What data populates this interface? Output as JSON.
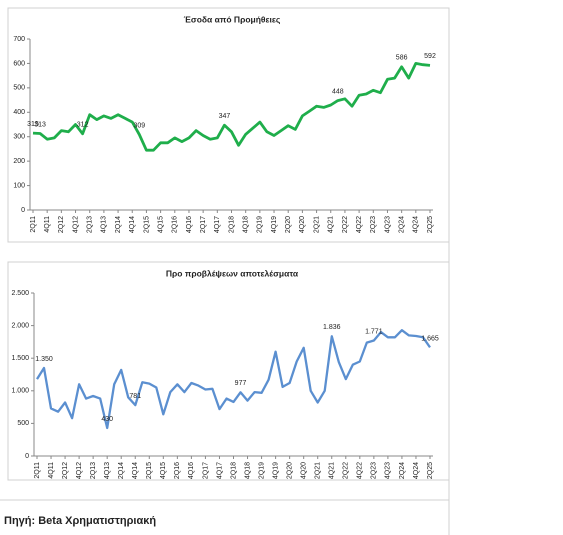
{
  "chart_data": [
    {
      "type": "line",
      "title": "Έσοδα από Προμήθειες",
      "categories": [
        "2Q11",
        null,
        "4Q11",
        null,
        "2Q12",
        null,
        "4Q12",
        null,
        "2Q13",
        null,
        "4Q13",
        null,
        "2Q14",
        null,
        "4Q14",
        null,
        "2Q15",
        null,
        "4Q15",
        null,
        "2Q16",
        null,
        "4Q16",
        null,
        "2Q17",
        null,
        "4Q17",
        null,
        "2Q18",
        null,
        "4Q18",
        null,
        "2Q19",
        null,
        "4Q19",
        null,
        "2Q20",
        null,
        "4Q20",
        null,
        "2Q21",
        null,
        "4Q21",
        null,
        "2Q22",
        null,
        "4Q22",
        null,
        "2Q23",
        null,
        "4Q23",
        null,
        "2Q24",
        null,
        "4Q24",
        null,
        "2Q25"
      ],
      "values": [
        315,
        313,
        290,
        295,
        325,
        320,
        350,
        312,
        390,
        370,
        385,
        375,
        390,
        375,
        360,
        309,
        245,
        245,
        275,
        275,
        295,
        280,
        295,
        325,
        305,
        290,
        295,
        347,
        320,
        265,
        310,
        335,
        360,
        320,
        305,
        325,
        345,
        330,
        385,
        405,
        425,
        420,
        430,
        448,
        455,
        425,
        470,
        475,
        490,
        480,
        535,
        540,
        586,
        540,
        600,
        595,
        592
      ],
      "value_labels": [
        "315",
        "313",
        null,
        null,
        null,
        null,
        null,
        "312",
        null,
        null,
        null,
        null,
        null,
        null,
        null,
        "309",
        null,
        null,
        null,
        null,
        null,
        null,
        null,
        null,
        null,
        null,
        null,
        "347",
        null,
        null,
        null,
        null,
        null,
        null,
        null,
        null,
        null,
        null,
        null,
        null,
        null,
        null,
        null,
        "448",
        null,
        null,
        null,
        null,
        null,
        null,
        null,
        null,
        "586",
        null,
        null,
        null,
        "592"
      ],
      "color": "#1fae4b",
      "ylim": [
        0,
        700
      ],
      "yticks": [
        0,
        100,
        200,
        300,
        400,
        500,
        600,
        700
      ],
      "grid": false
    },
    {
      "type": "line",
      "title": "Προ προβλέψεων αποτελέσματα",
      "categories": [
        "2Q11",
        null,
        "4Q11",
        null,
        "2Q12",
        null,
        "4Q12",
        null,
        "2Q13",
        null,
        "4Q13",
        null,
        "2Q14",
        null,
        "4Q14",
        null,
        "2Q15",
        null,
        "4Q15",
        null,
        "2Q16",
        null,
        "4Q16",
        null,
        "2Q17",
        null,
        "4Q17",
        null,
        "2Q18",
        null,
        "4Q18",
        null,
        "2Q19",
        null,
        "4Q19",
        null,
        "2Q20",
        null,
        "4Q20",
        null,
        "2Q21",
        null,
        "4Q21",
        null,
        "2Q22",
        null,
        "4Q22",
        null,
        "2Q23",
        null,
        "4Q23",
        null,
        "2Q24",
        null,
        "4Q24",
        null,
        "2Q25"
      ],
      "values": [
        1180,
        1350,
        730,
        680,
        820,
        580,
        1100,
        880,
        920,
        880,
        430,
        1100,
        1320,
        900,
        781,
        1130,
        1110,
        1050,
        640,
        980,
        1100,
        980,
        1120,
        1080,
        1020,
        1030,
        720,
        880,
        830,
        977,
        850,
        980,
        970,
        1170,
        1600,
        1060,
        1120,
        1450,
        1660,
        1000,
        820,
        1000,
        1836,
        1440,
        1180,
        1400,
        1450,
        1740,
        1771,
        1900,
        1820,
        1820,
        1930,
        1850,
        1840,
        1820,
        1665
      ],
      "value_labels": [
        null,
        "1.350",
        null,
        null,
        null,
        null,
        null,
        null,
        null,
        null,
        "430",
        null,
        null,
        null,
        "781",
        null,
        null,
        null,
        null,
        null,
        null,
        null,
        null,
        null,
        null,
        null,
        null,
        null,
        null,
        "977",
        null,
        null,
        null,
        null,
        null,
        null,
        null,
        null,
        null,
        null,
        null,
        null,
        "1.836",
        null,
        null,
        null,
        null,
        null,
        "1.771",
        null,
        null,
        null,
        null,
        null,
        null,
        null,
        "1.665"
      ],
      "color": "#5b8fd0",
      "ylim": [
        0,
        2500
      ],
      "yticks": [
        0,
        500,
        {
          "value": 1000,
          "label": "1.000"
        },
        {
          "value": 1500,
          "label": "1.500"
        },
        {
          "value": 2000,
          "label": "2.000"
        },
        {
          "value": 2500,
          "label": "2.500"
        }
      ],
      "grid": false
    }
  ],
  "source": "Πηγή: Beta Χρηματιστηριακή"
}
